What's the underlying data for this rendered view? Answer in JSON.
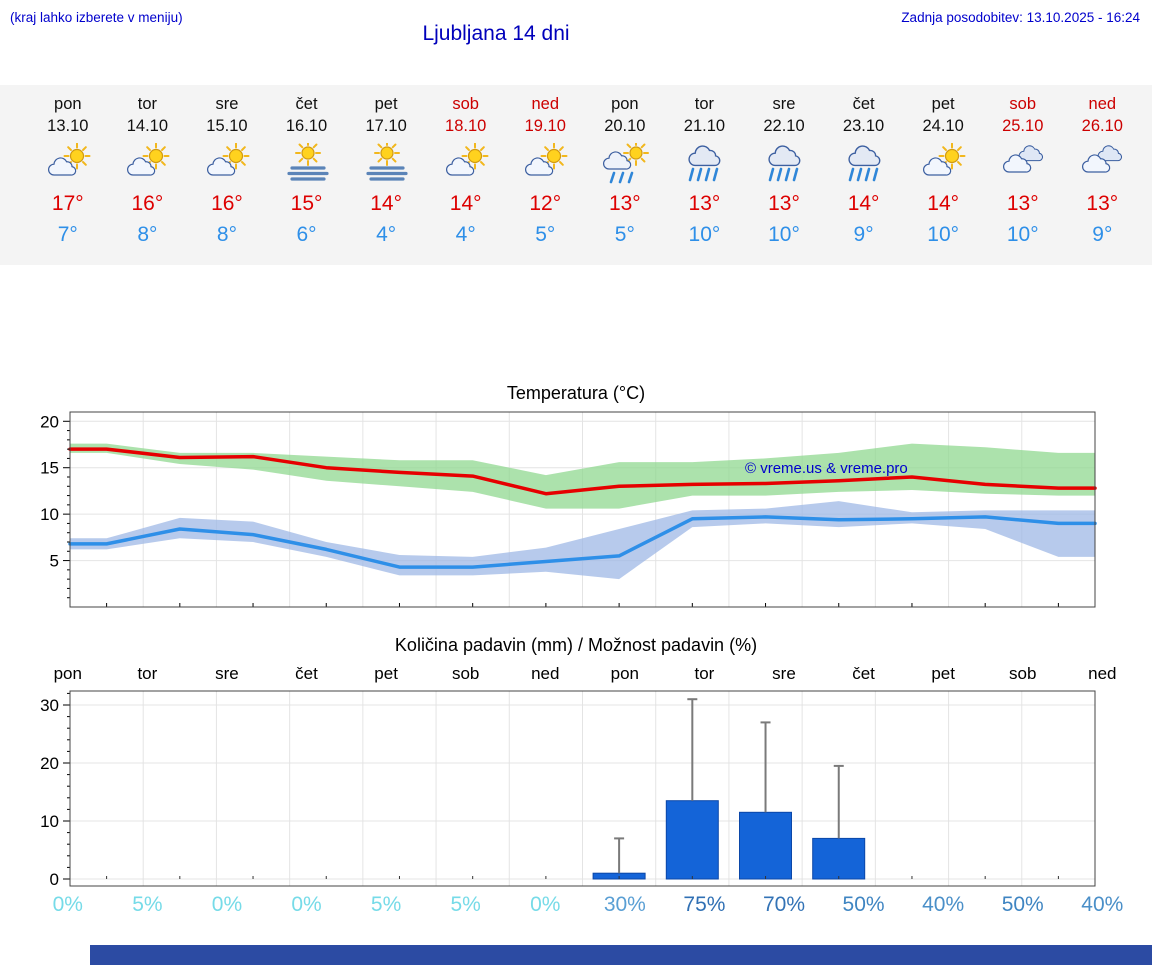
{
  "header": {
    "note": "(kraj lahko izberete v meniju)",
    "title": "Ljubljana 14 dni",
    "updated": "Zadnja posodobitev: 13.10.2025 - 16:24"
  },
  "forecast": {
    "days": [
      {
        "day": "pon",
        "date": "13.10",
        "icon": "sun-cloud",
        "high": "17°",
        "low": "7°",
        "weekend": false
      },
      {
        "day": "tor",
        "date": "14.10",
        "icon": "sun-cloud",
        "high": "16°",
        "low": "8°",
        "weekend": false
      },
      {
        "day": "sre",
        "date": "15.10",
        "icon": "sun-cloud",
        "high": "16°",
        "low": "8°",
        "weekend": false
      },
      {
        "day": "čet",
        "date": "16.10",
        "icon": "fog-sun",
        "high": "15°",
        "low": "6°",
        "weekend": false
      },
      {
        "day": "pet",
        "date": "17.10",
        "icon": "fog-sun",
        "high": "14°",
        "low": "4°",
        "weekend": false
      },
      {
        "day": "sob",
        "date": "18.10",
        "icon": "sun-cloud",
        "high": "14°",
        "low": "4°",
        "weekend": true
      },
      {
        "day": "ned",
        "date": "19.10",
        "icon": "sun-cloud",
        "high": "12°",
        "low": "5°",
        "weekend": true
      },
      {
        "day": "pon",
        "date": "20.10",
        "icon": "sun-rain",
        "high": "13°",
        "low": "5°",
        "weekend": false
      },
      {
        "day": "tor",
        "date": "21.10",
        "icon": "rain",
        "high": "13°",
        "low": "10°",
        "weekend": false
      },
      {
        "day": "sre",
        "date": "22.10",
        "icon": "rain",
        "high": "13°",
        "low": "10°",
        "weekend": false
      },
      {
        "day": "čet",
        "date": "23.10",
        "icon": "rain",
        "high": "14°",
        "low": "9°",
        "weekend": false
      },
      {
        "day": "pet",
        "date": "24.10",
        "icon": "sun-cloud",
        "high": "14°",
        "low": "10°",
        "weekend": false
      },
      {
        "day": "sob",
        "date": "25.10",
        "icon": "cloud",
        "high": "13°",
        "low": "10°",
        "weekend": true
      },
      {
        "day": "ned",
        "date": "26.10",
        "icon": "cloud",
        "high": "13°",
        "low": "9°",
        "weekend": true
      }
    ]
  },
  "chart_data": [
    {
      "type": "line",
      "title": "Temperatura (°C)",
      "categories": [
        "pon",
        "tor",
        "sre",
        "čet",
        "pet",
        "sob",
        "ned",
        "pon",
        "tor",
        "sre",
        "čet",
        "pet",
        "sob",
        "ned"
      ],
      "ylim": [
        0,
        21
      ],
      "yticks": [
        5,
        10,
        15,
        20
      ],
      "grid": true,
      "series": [
        {
          "name": "max temperature",
          "color": "#e60000",
          "values": [
            17.0,
            16.1,
            16.2,
            15.0,
            14.5,
            14.1,
            12.2,
            13.0,
            13.2,
            13.3,
            13.6,
            14.0,
            13.2,
            12.8
          ]
        },
        {
          "name": "min temperature",
          "color": "#2e8fe8",
          "values": [
            6.8,
            8.4,
            7.8,
            6.2,
            4.3,
            4.3,
            4.9,
            5.5,
            9.5,
            9.7,
            9.4,
            9.5,
            9.7,
            9.0
          ]
        }
      ],
      "bands": [
        {
          "name": "max range",
          "color": "#90d890",
          "upper": [
            17.6,
            16.6,
            16.6,
            16.2,
            15.8,
            15.8,
            14.2,
            15.6,
            15.6,
            16.0,
            16.6,
            17.6,
            17.2,
            16.6
          ],
          "lower": [
            16.6,
            15.4,
            14.8,
            13.6,
            13.0,
            12.4,
            10.6,
            10.6,
            12.0,
            12.0,
            12.4,
            12.6,
            12.2,
            12.0
          ]
        },
        {
          "name": "min range",
          "color": "#9fb8e6",
          "upper": [
            7.4,
            9.6,
            9.2,
            7.0,
            5.6,
            5.4,
            6.4,
            8.4,
            10.4,
            10.6,
            11.4,
            10.2,
            10.4,
            10.4
          ],
          "lower": [
            6.2,
            7.4,
            7.0,
            5.4,
            3.4,
            3.4,
            3.8,
            3.0,
            8.6,
            9.0,
            8.6,
            9.0,
            8.4,
            5.4
          ]
        }
      ],
      "watermark": "© vreme.us & vreme.pro"
    },
    {
      "type": "bar",
      "title": "Količina padavin (mm) / Možnost padavin (%)",
      "categories": [
        "pon",
        "tor",
        "sre",
        "čet",
        "pet",
        "sob",
        "ned",
        "pon",
        "tor",
        "sre",
        "čet",
        "pet",
        "sob",
        "ned"
      ],
      "ylim": [
        0,
        33
      ],
      "yticks": [
        0,
        10,
        20,
        30
      ],
      "values": [
        0,
        0,
        0,
        0,
        0,
        0,
        0,
        1,
        13.5,
        11.5,
        7,
        0,
        0,
        0
      ],
      "whisker_max": [
        0,
        0,
        0,
        0,
        0,
        0,
        0,
        7,
        31,
        27,
        19.5,
        0,
        0,
        0
      ],
      "bar_color": "#1464d8",
      "probabilities": [
        "0%",
        "5%",
        "0%",
        "0%",
        "5%",
        "5%",
        "0%",
        "30%",
        "75%",
        "70%",
        "50%",
        "40%",
        "50%",
        "40%"
      ],
      "prob_colors": [
        "#76dbe8",
        "#76dbe8",
        "#76dbe8",
        "#76dbe8",
        "#76dbe8",
        "#76dbe8",
        "#76dbe8",
        "#5a9fd4",
        "#3070b4",
        "#3373b6",
        "#3f85c2",
        "#4a8fc8",
        "#3f85c2",
        "#4a8fc8"
      ]
    }
  ],
  "colors": {
    "link_blue": "#0000cc",
    "weekend_red": "#cc0000",
    "high_temp_red": "#dd0000",
    "low_temp_blue": "#2e8fe8",
    "banner_blue": "#2c4ba3"
  }
}
